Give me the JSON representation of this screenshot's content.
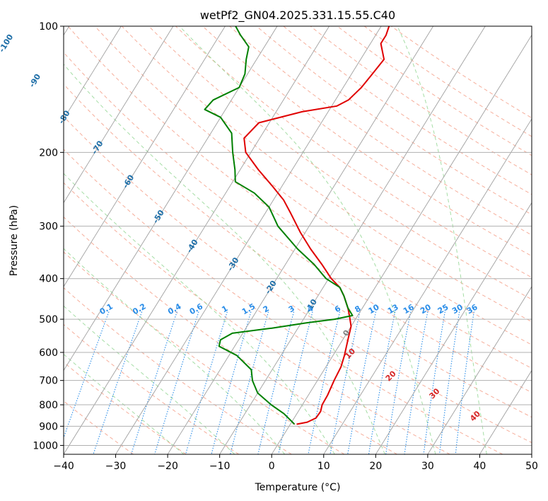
{
  "chart_data": {
    "type": "line",
    "title": "wetPf2_GN04.2025.331.15.55.C40",
    "xlabel": "Temperature (°C)",
    "ylabel": "Pressure (hPa)",
    "xlim": [
      -40,
      50
    ],
    "ylim": [
      1050,
      100
    ],
    "y_scale": "log",
    "x_ticks": [
      -40,
      -30,
      -20,
      -10,
      0,
      10,
      20,
      30,
      40,
      50
    ],
    "x_tick_labels": [
      "−40",
      "−30",
      "−20",
      "−10",
      "0",
      "10",
      "20",
      "30",
      "40",
      "50"
    ],
    "y_ticks": [
      1000,
      900,
      800,
      700,
      600,
      500,
      400,
      300,
      200,
      100
    ],
    "y_tick_labels": [
      "1000",
      "900",
      "800",
      "700",
      "600",
      "500",
      "400",
      "300",
      "200",
      "100"
    ],
    "skew_deg_per_decade": 50,
    "colors": {
      "temperature": "#e00000",
      "dewpoint": "#008000",
      "isotherm": "#a0a0a0",
      "dry_adiabat": "#f4a08a",
      "moist_adiabat": "#8fd48f",
      "mixing_ratio": "#2a8de8",
      "temp_label": "#1f6fa8",
      "moist_label": "#d62728"
    },
    "series": [
      {
        "name": "Temperature",
        "color": "#e00000",
        "points": [
          {
            "p": 890,
            "t": 1.2
          },
          {
            "p": 880,
            "t": 3.0
          },
          {
            "p": 860,
            "t": 4.2
          },
          {
            "p": 830,
            "t": 4.3
          },
          {
            "p": 800,
            "t": 3.8
          },
          {
            "p": 760,
            "t": 3.7
          },
          {
            "p": 700,
            "t": 3.2
          },
          {
            "p": 650,
            "t": 2.9
          },
          {
            "p": 610,
            "t": 2.2
          },
          {
            "p": 560,
            "t": 1.0
          },
          {
            "p": 520,
            "t": 0.0
          },
          {
            "p": 490,
            "t": -1.6
          },
          {
            "p": 470,
            "t": -2.8
          },
          {
            "p": 440,
            "t": -5.0
          },
          {
            "p": 420,
            "t": -6.8
          },
          {
            "p": 400,
            "t": -9.5
          },
          {
            "p": 370,
            "t": -13.0
          },
          {
            "p": 340,
            "t": -17.0
          },
          {
            "p": 310,
            "t": -21.0
          },
          {
            "p": 280,
            "t": -25.0
          },
          {
            "p": 260,
            "t": -28.0
          },
          {
            "p": 240,
            "t": -32.0
          },
          {
            "p": 220,
            "t": -36.5
          },
          {
            "p": 200,
            "t": -41.0
          },
          {
            "p": 185,
            "t": -43.0
          },
          {
            "p": 170,
            "t": -42.0
          },
          {
            "p": 160,
            "t": -35.0
          },
          {
            "p": 155,
            "t": -29.0
          },
          {
            "p": 150,
            "t": -27.5
          },
          {
            "p": 140,
            "t": -26.5
          },
          {
            "p": 130,
            "t": -26.0
          },
          {
            "p": 120,
            "t": -25.5
          },
          {
            "p": 110,
            "t": -28.0
          },
          {
            "p": 105,
            "t": -28.0
          },
          {
            "p": 100,
            "t": -28.5
          }
        ]
      },
      {
        "name": "Dewpoint",
        "color": "#008000",
        "points": [
          {
            "p": 890,
            "t": 0.8
          },
          {
            "p": 870,
            "t": -0.5
          },
          {
            "p": 840,
            "t": -2.5
          },
          {
            "p": 800,
            "t": -6.0
          },
          {
            "p": 750,
            "t": -10.0
          },
          {
            "p": 700,
            "t": -12.5
          },
          {
            "p": 660,
            "t": -14.0
          },
          {
            "p": 610,
            "t": -18.5
          },
          {
            "p": 580,
            "t": -23.0
          },
          {
            "p": 560,
            "t": -23.5
          },
          {
            "p": 540,
            "t": -22.0
          },
          {
            "p": 525,
            "t": -15.0
          },
          {
            "p": 510,
            "t": -9.0
          },
          {
            "p": 500,
            "t": -4.0
          },
          {
            "p": 490,
            "t": -1.0
          },
          {
            "p": 470,
            "t": -2.8
          },
          {
            "p": 440,
            "t": -5.0
          },
          {
            "p": 420,
            "t": -6.8
          },
          {
            "p": 400,
            "t": -10.5
          },
          {
            "p": 370,
            "t": -14.5
          },
          {
            "p": 340,
            "t": -19.5
          },
          {
            "p": 300,
            "t": -26.0
          },
          {
            "p": 270,
            "t": -30.0
          },
          {
            "p": 250,
            "t": -34.5
          },
          {
            "p": 235,
            "t": -39.5
          },
          {
            "p": 220,
            "t": -41.0
          },
          {
            "p": 200,
            "t": -43.5
          },
          {
            "p": 180,
            "t": -46.0
          },
          {
            "p": 165,
            "t": -50.0
          },
          {
            "p": 158,
            "t": -54.0
          },
          {
            "p": 150,
            "t": -53.5
          },
          {
            "p": 140,
            "t": -50.0
          },
          {
            "p": 130,
            "t": -50.5
          },
          {
            "p": 120,
            "t": -52.0
          },
          {
            "p": 112,
            "t": -53.0
          },
          {
            "p": 105,
            "t": -56.0
          },
          {
            "p": 100,
            "t": -58.0
          }
        ]
      }
    ],
    "isotherm_labels": [
      "-100",
      "-90",
      "-80",
      "-70",
      "-60",
      "-50",
      "-40",
      "-30",
      "-20",
      "-10",
      "0"
    ],
    "mixing_ratio_labels": [
      "0.1",
      "0.2",
      "0.4",
      "0.6",
      "1",
      "1.5",
      "2",
      "3",
      "4",
      "6",
      "8",
      "10",
      "13",
      "16",
      "20",
      "25",
      "30",
      "36"
    ],
    "moist_adiabat_labels": [
      "10",
      "20",
      "30",
      "40"
    ]
  }
}
